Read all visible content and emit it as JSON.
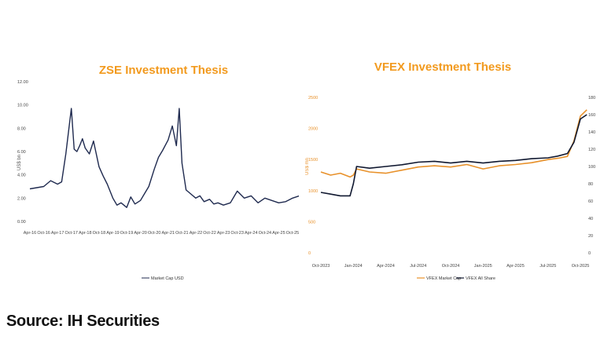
{
  "source": "Source: IH Securities",
  "chart_data": [
    {
      "type": "line",
      "title": "ZSE Investment Thesis",
      "ylabel": "US$ bn",
      "xlabel": "",
      "ylim": [
        0,
        12
      ],
      "y_ticks": [
        "0.00",
        "2.00",
        "4.00",
        "6.00",
        "8.00",
        "10.00",
        "12.00"
      ],
      "categories": [
        "Apr-16",
        "Oct-16",
        "Apr-17",
        "Oct-17",
        "Apr-18",
        "Oct-18",
        "Apr-19",
        "Oct-19",
        "Apr-20",
        "Oct-20",
        "Apr-21",
        "Oct-21",
        "Apr-22",
        "Oct-22",
        "Apr-23",
        "Oct-23",
        "Apr-24",
        "Oct-24",
        "Apr-25",
        "Oct-25"
      ],
      "legend": "top-bottom",
      "grid": false,
      "colors": {
        "line": "#1f2a4f"
      },
      "series": [
        {
          "name": "Market Cap USD",
          "x": [
            0,
            0.5,
            1,
            1.5,
            2,
            2.3,
            2.6,
            3,
            3.2,
            3.4,
            3.6,
            3.8,
            4,
            4.3,
            4.6,
            5,
            5.3,
            5.6,
            6,
            6.3,
            6.6,
            7,
            7.3,
            7.6,
            8,
            8.3,
            8.6,
            9,
            9.3,
            9.6,
            10,
            10.3,
            10.6,
            10.8,
            11,
            11.3,
            11.6,
            12,
            12.3,
            12.6,
            13,
            13.3,
            13.6,
            14,
            14.5,
            15,
            15.5,
            16,
            16.5,
            17,
            17.5,
            18,
            18.5,
            19,
            19.5
          ],
          "values": [
            2.8,
            2.9,
            3.0,
            3.5,
            3.2,
            3.4,
            5.8,
            9.7,
            6.2,
            6.0,
            6.5,
            7.1,
            6.3,
            5.8,
            6.9,
            4.7,
            3.9,
            3.2,
            2.0,
            1.4,
            1.6,
            1.2,
            2.1,
            1.5,
            1.8,
            2.4,
            3.0,
            4.5,
            5.5,
            6.1,
            7.0,
            8.2,
            6.5,
            9.7,
            5.0,
            2.7,
            2.4,
            2.0,
            2.2,
            1.7,
            1.9,
            1.5,
            1.6,
            1.4,
            1.6,
            2.6,
            2.0,
            2.2,
            1.6,
            2.0,
            1.8,
            1.6,
            1.7,
            2.0,
            2.2
          ]
        }
      ]
    },
    {
      "type": "line",
      "title": "VFEX Investment Thesis",
      "ylabel": "US$ mn",
      "xlabel": "",
      "ylim_left": [
        0,
        2500
      ],
      "ylim_right": [
        0,
        180
      ],
      "y_ticks_left": [
        "0",
        "500",
        "1000",
        "1500",
        "2000",
        "2500"
      ],
      "y_ticks_right": [
        "0",
        "20",
        "40",
        "60",
        "80",
        "100",
        "120",
        "140",
        "160",
        "180"
      ],
      "categories": [
        "Oct-2023",
        "Jan-2024",
        "Apr-2024",
        "Jul-2024",
        "Oct-2024",
        "Jan-2025",
        "Apr-2025",
        "Jul-2025",
        "Oct-2025"
      ],
      "legend": "bottom",
      "grid": false,
      "colors": {
        "market_cap": "#e8912a",
        "all_share": "#101830"
      },
      "series": [
        {
          "name": "VFEX Market Cap",
          "axis": "left",
          "x": [
            0,
            0.3,
            0.6,
            0.9,
            1.0,
            1.1,
            1.5,
            2,
            2.5,
            3,
            3.5,
            4,
            4.5,
            5,
            5.5,
            6,
            6.5,
            7,
            7.3,
            7.6,
            7.8,
            8,
            8.2
          ],
          "values": [
            1300,
            1250,
            1280,
            1220,
            1250,
            1350,
            1300,
            1280,
            1330,
            1380,
            1400,
            1380,
            1420,
            1350,
            1400,
            1420,
            1450,
            1500,
            1520,
            1550,
            1800,
            2200,
            2300
          ]
        },
        {
          "name": "VFEX All Share",
          "axis": "right",
          "x": [
            0,
            0.3,
            0.6,
            0.9,
            1.0,
            1.1,
            1.5,
            2,
            2.5,
            3,
            3.5,
            4,
            4.5,
            5,
            5.5,
            6,
            6.5,
            7,
            7.3,
            7.6,
            7.8,
            8,
            8.2
          ],
          "values": [
            70,
            68,
            66,
            66,
            80,
            100,
            98,
            100,
            102,
            105,
            106,
            104,
            106,
            104,
            106,
            107,
            109,
            110,
            112,
            115,
            128,
            155,
            160
          ]
        }
      ]
    }
  ]
}
